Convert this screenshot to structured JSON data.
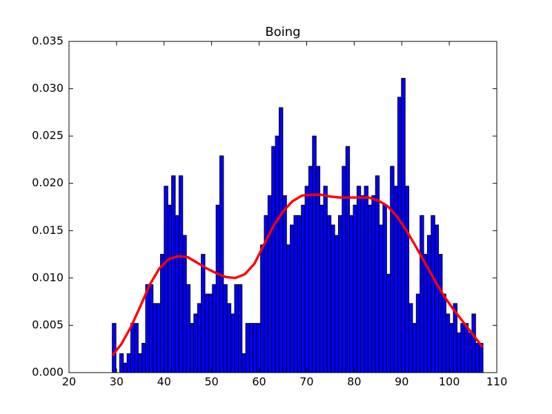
{
  "chart_data": {
    "type": "histogram",
    "title": "Boing",
    "bins": [
      29.1,
      29.88,
      30.66,
      31.44,
      32.22,
      33.0,
      33.78,
      34.56,
      35.34,
      36.12,
      36.9,
      37.68,
      38.46,
      39.24,
      40.02,
      40.8,
      41.58,
      42.36,
      43.14,
      43.92,
      44.7,
      45.48,
      46.26,
      47.04,
      47.82,
      48.6,
      49.38,
      50.16,
      50.94,
      51.72,
      52.5,
      53.28,
      54.06,
      54.84,
      55.62,
      56.4,
      57.18,
      57.96,
      58.74,
      59.52,
      60.3,
      61.08,
      61.86,
      62.64,
      63.42,
      64.2,
      64.98,
      65.76,
      66.54,
      67.32,
      68.1,
      68.88,
      69.66,
      70.44,
      71.22,
      72.0,
      72.78,
      73.56,
      74.34,
      75.12,
      75.9,
      76.68,
      77.46,
      78.24,
      79.02,
      79.8,
      80.58,
      81.36,
      82.14,
      82.92,
      83.7,
      84.48,
      85.26,
      86.04,
      86.82,
      87.6,
      88.38,
      89.16,
      89.94,
      90.72,
      91.5,
      92.28,
      93.06,
      93.84,
      94.62,
      95.4,
      96.18,
      96.96,
      97.74,
      98.52,
      99.3,
      100.08,
      100.86,
      101.64,
      102.42,
      103.2,
      103.98,
      104.76,
      105.54,
      106.32,
      107.1
    ],
    "values": [
      0.0052,
      0,
      0.002,
      0.001,
      0.002,
      0.0052,
      0.0052,
      0.002,
      0.0031,
      0.0093,
      0.0093,
      0.0073,
      0.0073,
      0.0125,
      0.0197,
      0.0177,
      0.0208,
      0.0166,
      0.0208,
      0.0145,
      0.0093,
      0.0052,
      0.0062,
      0.0073,
      0.0125,
      0.0083,
      0.0083,
      0.0093,
      0.0177,
      0.0229,
      0.0093,
      0.0073,
      0.0062,
      0.0093,
      0.0093,
      0.002,
      0.0052,
      0.0052,
      0.0052,
      0.0052,
      0.0135,
      0.0166,
      0.0187,
      0.0239,
      0.025,
      0.028,
      0.0187,
      0.0135,
      0.0156,
      0.0166,
      0.0166,
      0.0177,
      0.0197,
      0.0218,
      0.025,
      0.0218,
      0.0177,
      0.0197,
      0.0166,
      0.0156,
      0.0145,
      0.0166,
      0.0218,
      0.0239,
      0.0166,
      0.0177,
      0.0197,
      0.0187,
      0.0197,
      0.0177,
      0.0187,
      0.0208,
      0.0156,
      0.0177,
      0.0104,
      0.0218,
      0.0197,
      0.0291,
      0.0311,
      0.0197,
      0.0073,
      0.0052,
      0.0083,
      0.0166,
      0.0125,
      0.0145,
      0.0166,
      0.0156,
      0.0125,
      0.0083,
      0.0062,
      0.0052,
      0.0073,
      0.0042,
      0.0052,
      0.0052,
      0.0042,
      0.0062,
      0.0031,
      0.0031
    ],
    "color": "#0000ff",
    "edgecolor": "#000000",
    "curve": {
      "color": "#ff0000",
      "x": [
        29.1,
        31,
        33,
        35,
        37,
        39,
        41,
        43,
        45,
        47,
        49,
        51,
        53,
        55,
        57,
        59,
        61,
        63,
        65,
        67,
        69,
        71,
        73,
        75,
        77,
        79,
        81,
        83,
        85,
        87,
        89,
        91,
        93,
        95,
        97,
        99,
        101,
        103,
        105,
        107
      ],
      "values": [
        0.0018,
        0.003,
        0.0048,
        0.007,
        0.0093,
        0.011,
        0.012,
        0.0123,
        0.0122,
        0.0116,
        0.011,
        0.0105,
        0.0101,
        0.01,
        0.0104,
        0.0115,
        0.0135,
        0.0155,
        0.017,
        0.0181,
        0.0187,
        0.0188,
        0.0188,
        0.0186,
        0.0185,
        0.0185,
        0.0185,
        0.0185,
        0.0182,
        0.0176,
        0.0165,
        0.015,
        0.0133,
        0.0115,
        0.0097,
        0.008,
        0.0066,
        0.0053,
        0.004,
        0.0027
      ]
    },
    "xlim": [
      20,
      110
    ],
    "ylim": [
      0,
      0.035
    ],
    "xticks": [
      20,
      30,
      40,
      50,
      60,
      70,
      80,
      90,
      100,
      110
    ],
    "yticks": [
      {
        "value": 0,
        "label": "0.000"
      },
      {
        "value": 0.005,
        "label": "0.005"
      },
      {
        "value": 0.01,
        "label": "0.010"
      },
      {
        "value": 0.015,
        "label": "0.015"
      },
      {
        "value": 0.02,
        "label": "0.020"
      },
      {
        "value": 0.025,
        "label": "0.025"
      },
      {
        "value": 0.03,
        "label": "0.030"
      },
      {
        "value": 0.035,
        "label": "0.035"
      }
    ]
  }
}
